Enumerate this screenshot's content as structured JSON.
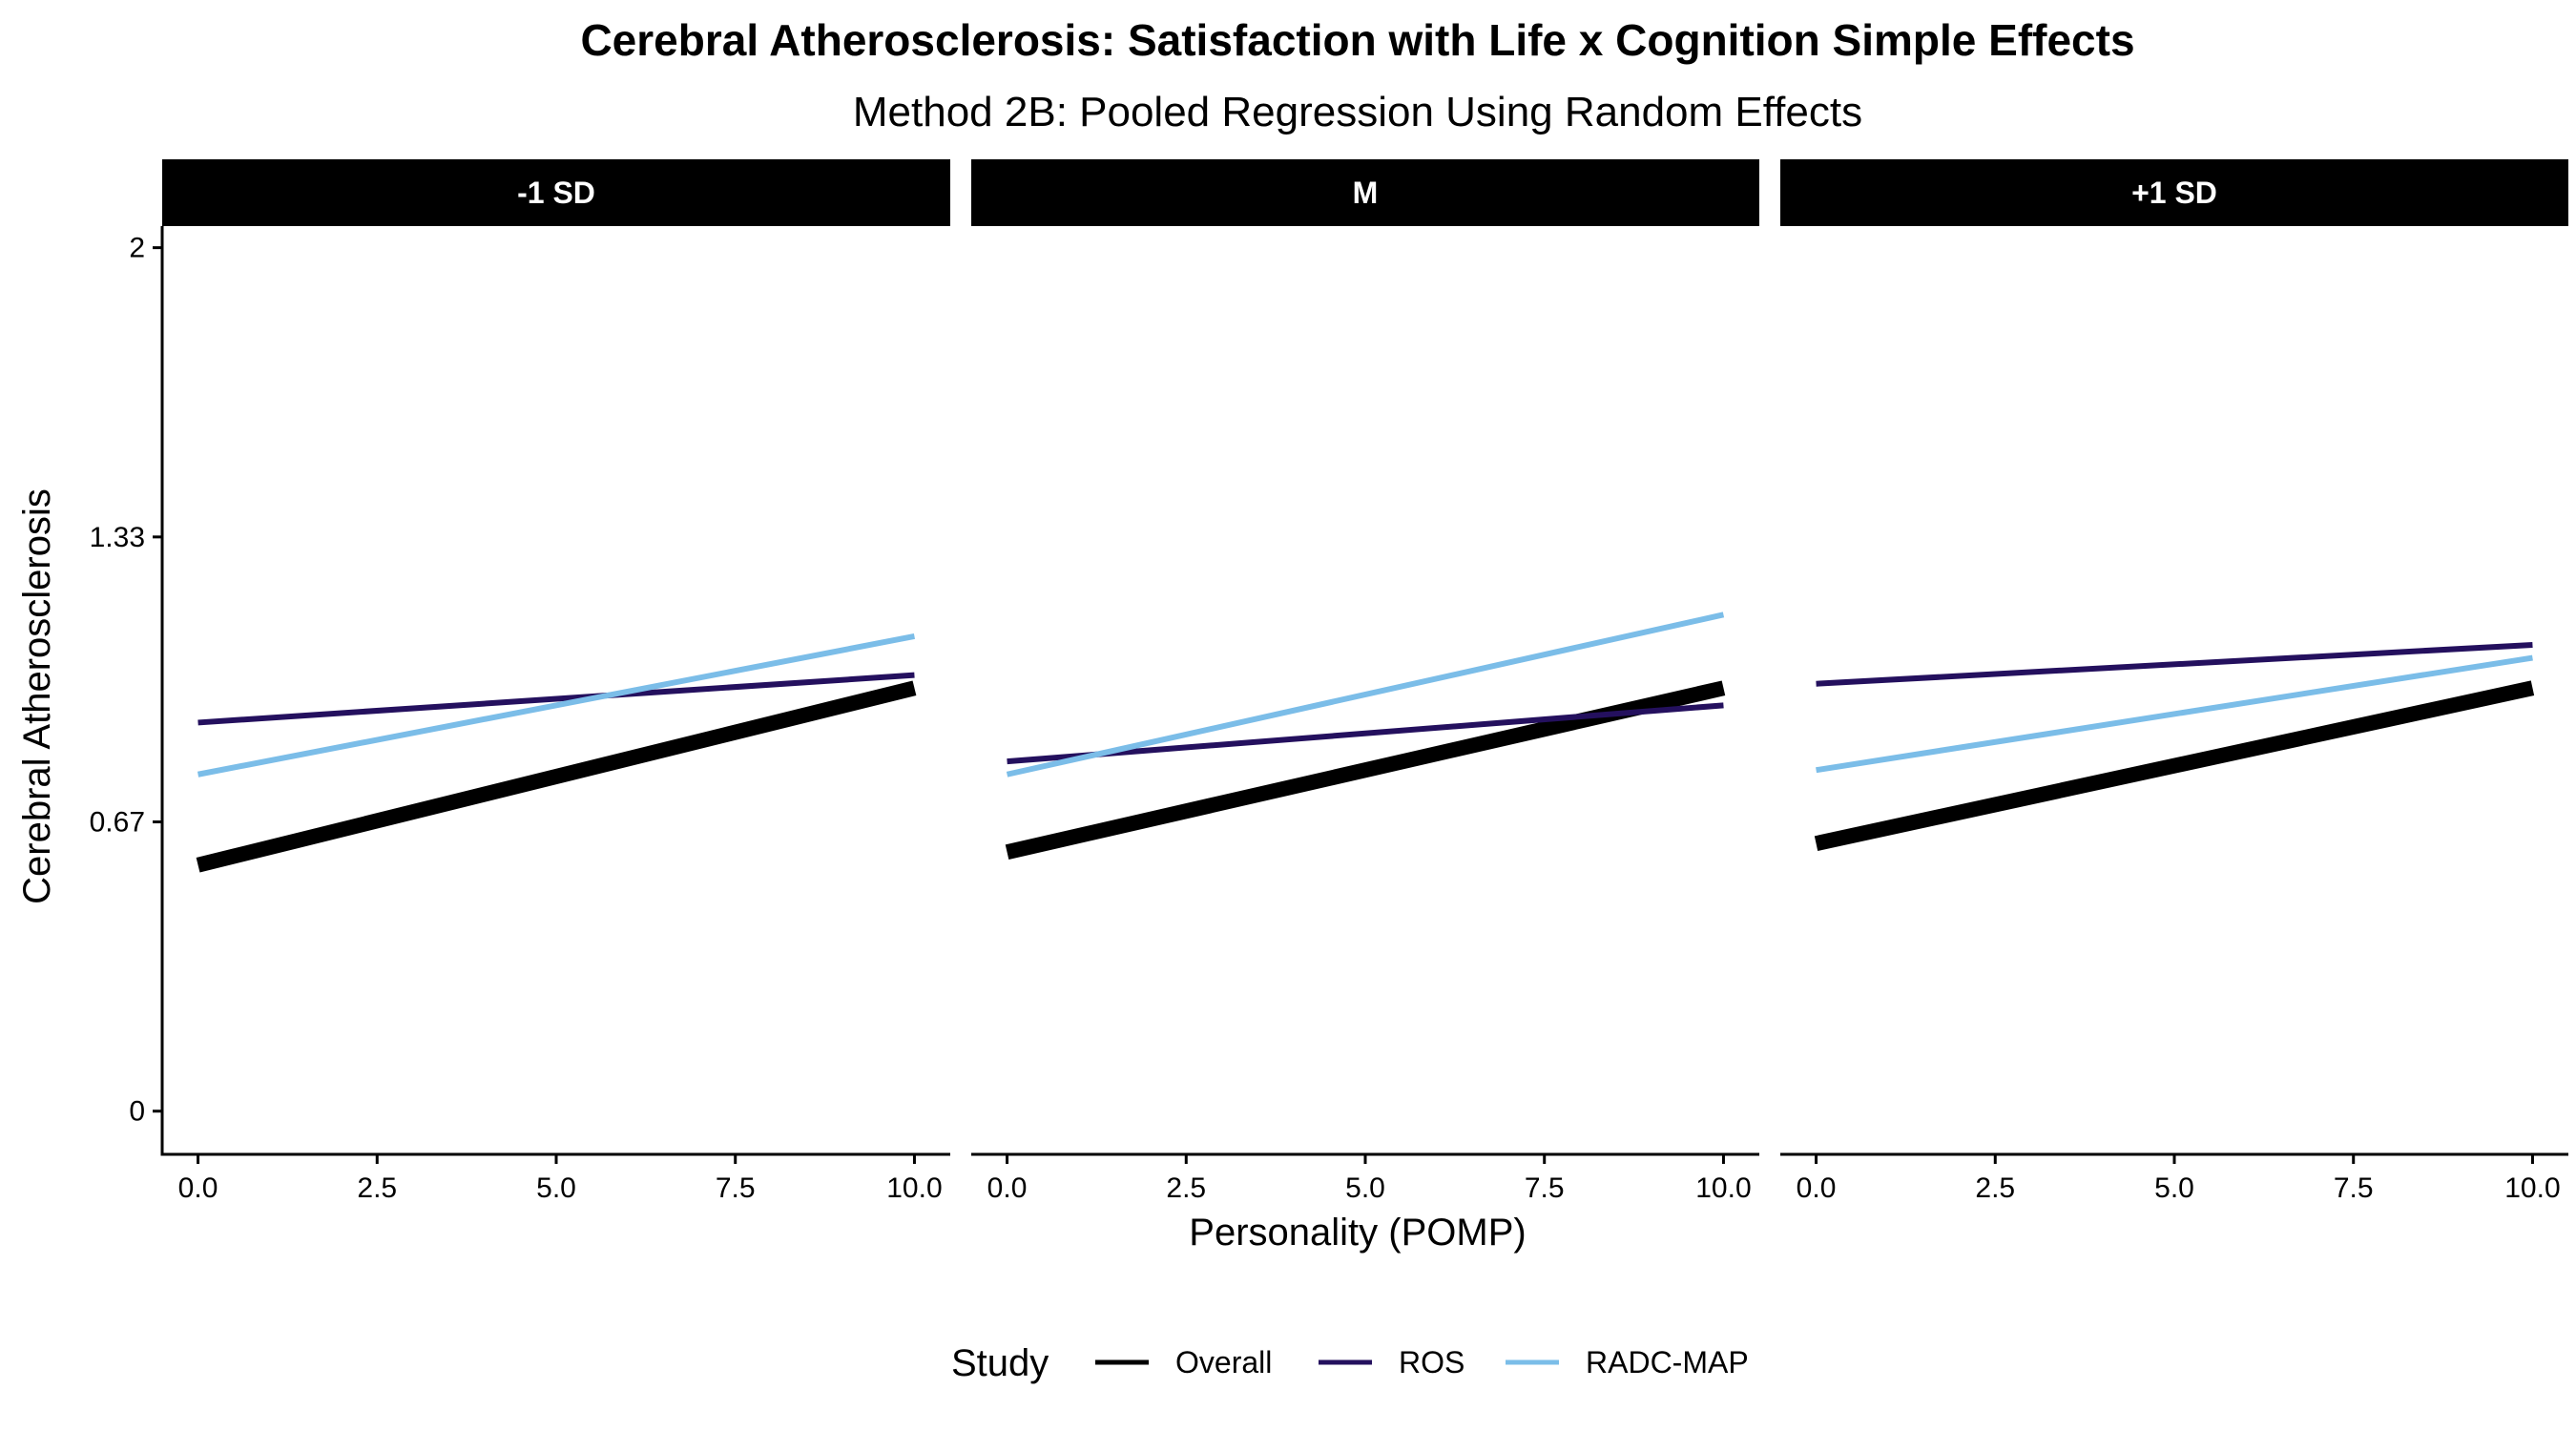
{
  "chart_data": {
    "type": "line",
    "title": "Cerebral Atherosclerosis: Satisfaction with Life x Cognition Simple Effects",
    "subtitle": "Method 2B: Pooled Regression Using Random Effects",
    "xlabel": "Personality (POMP)",
    "ylabel": "Cerebral Atherosclerosis",
    "xlim": [
      -0.5,
      10.5
    ],
    "ylim": [
      -0.1,
      2.05
    ],
    "xticks": [
      "0.0",
      "2.5",
      "5.0",
      "7.5",
      "10.0"
    ],
    "xtick_values": [
      0,
      2.5,
      5,
      7.5,
      10
    ],
    "yticks": [
      "0",
      "0.67",
      "1.33",
      "2"
    ],
    "ytick_values": [
      0,
      0.67,
      1.33,
      2
    ],
    "legend": {
      "title": "Study",
      "position": "bottom",
      "entries": [
        "Overall",
        "ROS",
        "RADC-MAP"
      ]
    },
    "series_styles": [
      {
        "name": "Overall",
        "color": "#000000"
      },
      {
        "name": "ROS",
        "color": "#24105e"
      },
      {
        "name": "RADC-MAP",
        "color": "#7bbde8"
      }
    ],
    "panels": [
      {
        "label": "-1 SD",
        "series": [
          {
            "name": "Overall",
            "x": [
              0,
              10
            ],
            "y": [
              0.57,
              0.98
            ]
          },
          {
            "name": "ROS",
            "x": [
              0,
              10
            ],
            "y": [
              0.9,
              1.01
            ]
          },
          {
            "name": "RADC-MAP",
            "x": [
              0,
              10
            ],
            "y": [
              0.78,
              1.1
            ]
          }
        ]
      },
      {
        "label": "M",
        "series": [
          {
            "name": "Overall",
            "x": [
              0,
              10
            ],
            "y": [
              0.6,
              0.98
            ]
          },
          {
            "name": "ROS",
            "x": [
              0,
              10
            ],
            "y": [
              0.81,
              0.94
            ]
          },
          {
            "name": "RADC-MAP",
            "x": [
              0,
              10
            ],
            "y": [
              0.78,
              1.15
            ]
          }
        ]
      },
      {
        "label": "+1 SD",
        "series": [
          {
            "name": "Overall",
            "x": [
              0,
              10
            ],
            "y": [
              0.62,
              0.98
            ]
          },
          {
            "name": "ROS",
            "x": [
              0,
              10
            ],
            "y": [
              0.99,
              1.08
            ]
          },
          {
            "name": "RADC-MAP",
            "x": [
              0,
              10
            ],
            "y": [
              0.79,
              1.05
            ]
          }
        ]
      }
    ]
  }
}
